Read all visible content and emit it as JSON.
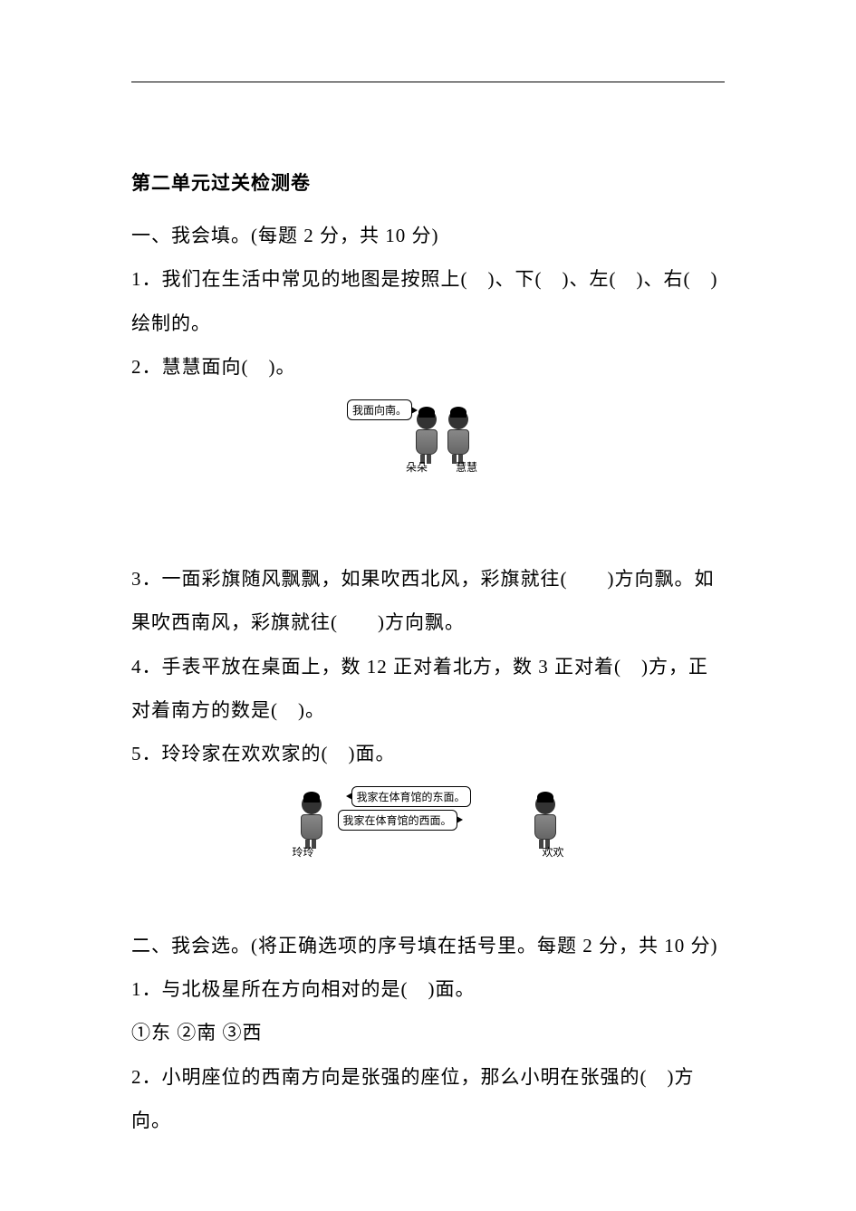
{
  "title": "第二单元过关检测卷",
  "section1": {
    "heading": "一、我会填。(每题 2 分，共 10 分)",
    "q1": "1．我们在生活中常见的地图是按照上(　)、下(　)、左(　)、右(　)绘制的。",
    "q2": "2．慧慧面向(　)。",
    "fig1": {
      "bubble": "我面向南。",
      "kid_left": "朵朵",
      "kid_right": "慧慧"
    },
    "q3": "3．一面彩旗随风飘飘，如果吹西北风，彩旗就往(　　)方向飘。如果吹西南风，彩旗就往(　　)方向飘。",
    "q4": "4．手表平放在桌面上，数 12 正对着北方，数 3 正对着(　)方，正对着南方的数是(　)。",
    "q5": "5．玲玲家在欢欢家的(　)面。",
    "fig2": {
      "bubble_right": "我家在体育馆的东面。",
      "bubble_left": "我家在体育馆的西面。",
      "kid_left": "玲玲",
      "kid_right": "欢欢"
    }
  },
  "section2": {
    "heading": "二、我会选。(将正确选项的序号填在括号里。每题 2 分，共 10 分)",
    "q1": "1．与北极星所在方向相对的是(　)面。",
    "q1_options": "①东  ②南  ③西",
    "q2": "2．小明座位的西南方向是张强的座位，那么小明在张强的(　)方向。"
  }
}
